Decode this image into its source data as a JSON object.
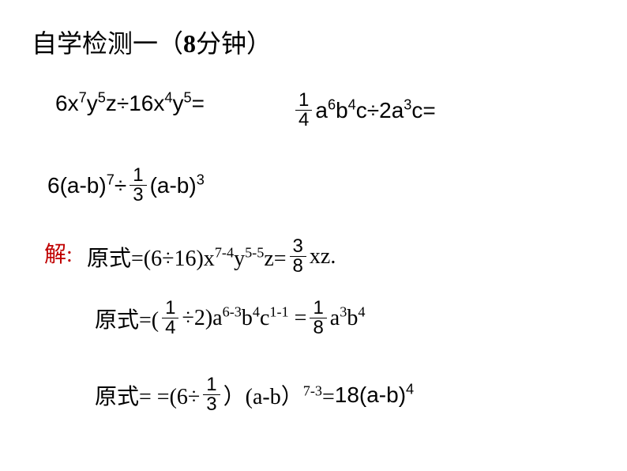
{
  "title": {
    "prefix": "自学检测一（",
    "number": "8",
    "suffix": "分钟）"
  },
  "problems": {
    "p1": {
      "text": "6x",
      "e1": "7",
      "t2": "y",
      "e2": "5",
      "t3": "z÷16x",
      "e3": "4",
      "t4": "y",
      "e4": "5",
      "t5": "="
    },
    "p2": {
      "frac_num": "1",
      "frac_den": "4",
      "t1": " a",
      "e1": "6",
      "t2": "b",
      "e2": "4",
      "t3": "c÷2a",
      "e3": "3",
      "t4": "c="
    },
    "p3": {
      "t1": "6(a-b)",
      "e1": "7",
      "t2": "÷ ",
      "frac_num": "1",
      "frac_den": "3",
      "t3": " (a-b)",
      "e2": "3"
    }
  },
  "solutions": {
    "label": "解:",
    "s1": {
      "t1": "原式=(6÷16)x",
      "e1": "7-4",
      "t2": "y",
      "e2": "5-5",
      "t3": "z= ",
      "frac_num": "3",
      "frac_den": "8",
      "t4": " xz."
    },
    "s2": {
      "t1": "原式=(",
      "frac1_num": "1",
      "frac1_den": "4",
      "t2": " ÷2)a",
      "e1": "6-3",
      "t3": "b",
      "e2": "4",
      "t4": "c",
      "e3": "1-1",
      "t5": "  = ",
      "frac2_num": "1",
      "frac2_den": "8",
      "t6": " a",
      "e4": "3",
      "t7": "b",
      "e5": "4"
    },
    "s3": {
      "t1": "原式= =(6÷",
      "frac_num": "1",
      "frac_den": "3",
      "t2": "）(a-b）",
      "e1": "7-3",
      "t3": "=",
      "t4": "18(a-b)",
      "e2": "4"
    }
  }
}
